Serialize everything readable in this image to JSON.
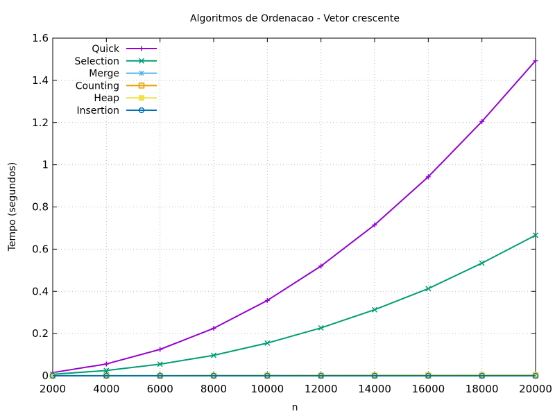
{
  "chart_data": {
    "type": "line",
    "title": "Algoritmos de Ordenacao - Vetor crescente",
    "xlabel": "n",
    "ylabel": "Tempo (segundos)",
    "xlim": [
      2000,
      20000
    ],
    "ylim": [
      0,
      1.6
    ],
    "xticks": [
      2000,
      4000,
      6000,
      8000,
      10000,
      12000,
      14000,
      16000,
      18000,
      20000
    ],
    "yticks": [
      0,
      0.2,
      0.4,
      0.6,
      0.8,
      1,
      1.2,
      1.4,
      1.6
    ],
    "xtick_labels": [
      "2000",
      "4000",
      "6000",
      "8000",
      "10000",
      "12000",
      "14000",
      "16000",
      "18000",
      "20000"
    ],
    "ytick_labels": [
      "0",
      "0.2",
      "0.4",
      "0.6",
      "0.8",
      "1",
      "1.2",
      "1.4",
      "1.6"
    ],
    "grid": true,
    "legend_position": "top-left",
    "x": [
      2000,
      4000,
      6000,
      8000,
      10000,
      12000,
      14000,
      16000,
      18000,
      20000
    ],
    "series": [
      {
        "name": "Quick",
        "color": "#9400d3",
        "marker": "plus",
        "values": [
          0.015,
          0.056,
          0.125,
          0.225,
          0.357,
          0.52,
          0.715,
          0.943,
          1.205,
          1.493
        ]
      },
      {
        "name": "Selection",
        "color": "#009e73",
        "marker": "cross",
        "values": [
          0.007,
          0.025,
          0.055,
          0.097,
          0.155,
          0.227,
          0.313,
          0.413,
          0.534,
          0.666
        ]
      },
      {
        "name": "Merge",
        "color": "#56b4e9",
        "marker": "asterisk",
        "values": [
          0.0005,
          0.001,
          0.0015,
          0.002,
          0.0025,
          0.003,
          0.0035,
          0.004,
          0.0045,
          0.005
        ]
      },
      {
        "name": "Counting",
        "color": "#e69f00",
        "marker": "square-open",
        "values": [
          0.0002,
          0.0003,
          0.0004,
          0.0005,
          0.0006,
          0.0007,
          0.0008,
          0.0009,
          0.001,
          0.0011
        ]
      },
      {
        "name": "Heap",
        "color": "#f0e442",
        "marker": "square-filled",
        "values": [
          0.0006,
          0.0012,
          0.0018,
          0.0024,
          0.003,
          0.0036,
          0.0042,
          0.0048,
          0.0054,
          0.006
        ]
      },
      {
        "name": "Insertion",
        "color": "#0072b2",
        "marker": "circle-open",
        "values": [
          0.0001,
          0.0001,
          0.0001,
          0.0001,
          0.0002,
          0.0002,
          0.0002,
          0.0002,
          0.0002,
          0.0002
        ]
      }
    ]
  }
}
